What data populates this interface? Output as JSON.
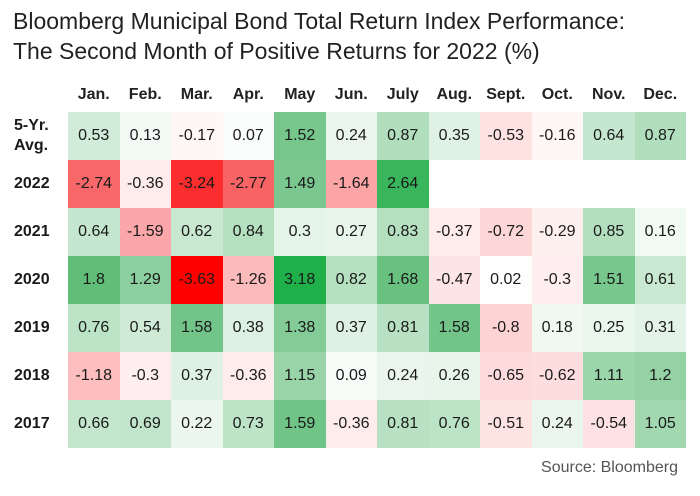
{
  "title_line1": "Bloomberg Municipal Bond Total Return Index Performance:",
  "title_line2": "The Second Month of Positive Returns for 2022 (%)",
  "source": "Source: Bloomberg",
  "chart_data": {
    "type": "heatmap",
    "title": "Bloomberg Municipal Bond Total Return Index Performance: The Second Month of Positive Returns for 2022 (%)",
    "columns": [
      "Jan.",
      "Feb.",
      "Mar.",
      "Apr.",
      "May",
      "Jun.",
      "July",
      "Aug.",
      "Sept.",
      "Oct.",
      "Nov.",
      "Dec."
    ],
    "rows": [
      {
        "label": "5-Yr. Avg.",
        "label_lines": [
          "5-Yr.",
          "Avg."
        ],
        "values": [
          "0.53",
          "0.13",
          "-0.17",
          "0.07",
          "1.52",
          "0.24",
          "0.87",
          "0.35",
          "-0.53",
          "-0.16",
          "0.64",
          "0.87"
        ]
      },
      {
        "label": "2022",
        "label_lines": [
          "2022"
        ],
        "values": [
          "-2.74",
          "-0.36",
          "-3.24",
          "-2.77",
          "1.49",
          "-1.64",
          "2.64",
          null,
          null,
          null,
          null,
          null
        ]
      },
      {
        "label": "2021",
        "label_lines": [
          "2021"
        ],
        "values": [
          "0.64",
          "-1.59",
          "0.62",
          "0.84",
          "0.3",
          "0.27",
          "0.83",
          "-0.37",
          "-0.72",
          "-0.29",
          "0.85",
          "0.16"
        ]
      },
      {
        "label": "2020",
        "label_lines": [
          "2020"
        ],
        "values": [
          "1.8",
          "1.29",
          "-3.63",
          "-1.26",
          "3.18",
          "0.82",
          "1.68",
          "-0.47",
          "0.02",
          "-0.3",
          "1.51",
          "0.61"
        ]
      },
      {
        "label": "2019",
        "label_lines": [
          "2019"
        ],
        "values": [
          "0.76",
          "0.54",
          "1.58",
          "0.38",
          "1.38",
          "0.37",
          "0.81",
          "1.58",
          "-0.8",
          "0.18",
          "0.25",
          "0.31"
        ]
      },
      {
        "label": "2018",
        "label_lines": [
          "2018"
        ],
        "values": [
          "-1.18",
          "-0.3",
          "0.37",
          "-0.36",
          "1.15",
          "0.09",
          "0.24",
          "0.26",
          "-0.65",
          "-0.62",
          "1.11",
          "1.2"
        ]
      },
      {
        "label": "2017",
        "label_lines": [
          "2017"
        ],
        "values": [
          "0.66",
          "0.69",
          "0.22",
          "0.73",
          "1.59",
          "-0.36",
          "0.81",
          "0.76",
          "-0.51",
          "0.24",
          "-0.54",
          "1.05"
        ]
      }
    ],
    "color_scale": {
      "min": -3.63,
      "max": 3.18,
      "negative_color": "#f8696b",
      "neutral_color": "#ffffff",
      "positive_color": "#63be7b",
      "extreme_negative_color": "#ff0000",
      "extreme_positive_color": "#1fb04a"
    }
  }
}
